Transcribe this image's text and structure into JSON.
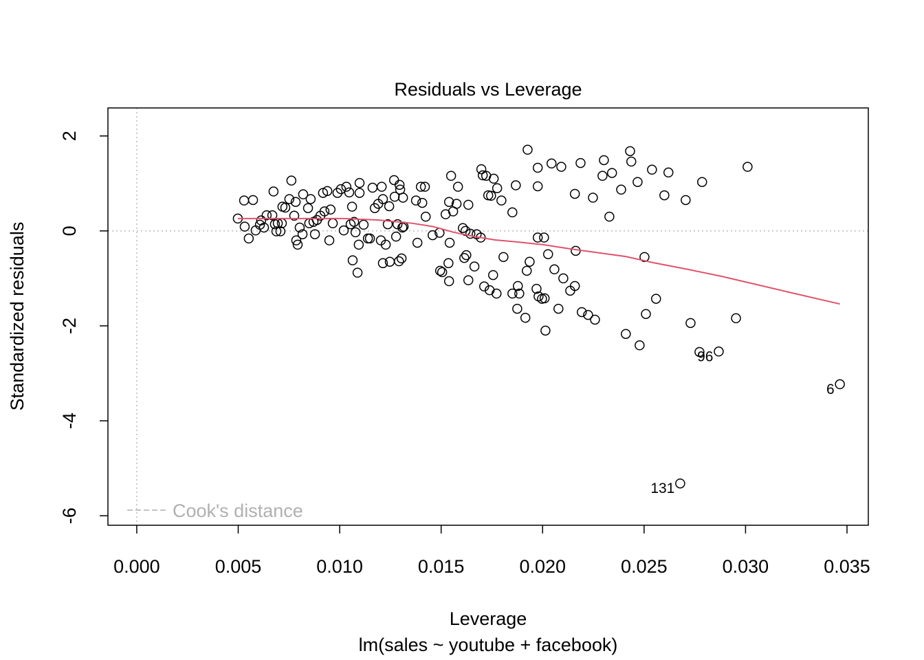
{
  "chart_data": {
    "type": "scatter",
    "title": "Residuals vs Leverage",
    "x_label": "Leverage",
    "subtitle": "lm(sales ~ youtube + facebook)",
    "y_label": "Standardized residuals",
    "xlim": [
      -0.00142,
      0.03605
    ],
    "ylim": [
      -6.2,
      2.59
    ],
    "xticks": [
      {
        "value": 0,
        "label": "0.000"
      },
      {
        "value": 0.005,
        "label": "0.005"
      },
      {
        "value": 0.01,
        "label": "0.010"
      },
      {
        "value": 0.015,
        "label": "0.015"
      },
      {
        "value": 0.02,
        "label": "0.020"
      },
      {
        "value": 0.025,
        "label": "0.025"
      },
      {
        "value": 0.03,
        "label": "0.030"
      },
      {
        "value": 0.035,
        "label": "0.035"
      }
    ],
    "yticks": [
      -6,
      -4,
      -2,
      0,
      2
    ],
    "reference_lines": {
      "x": 0,
      "y": 0
    },
    "legend": {
      "label": "Cook's distance",
      "position": "bottomleft",
      "color": "#b0b0b0"
    },
    "color": "#000000",
    "x": [
      0.02868,
      0.03465,
      0.02678,
      0.00498,
      0.00529,
      0.00573,
      0.00532,
      0.00552,
      0.00586,
      0.00607,
      0.00613,
      0.00627,
      0.0064,
      0.00668,
      0.00674,
      0.00681,
      0.00688,
      0.00695,
      0.00708,
      0.00715,
      0.00718,
      0.00732,
      0.00752,
      0.00762,
      0.00776,
      0.00783,
      0.00786,
      0.00793,
      0.00803,
      0.00817,
      0.0082,
      0.00844,
      0.0085,
      0.00857,
      0.00871,
      0.00878,
      0.00888,
      0.00905,
      0.00918,
      0.00925,
      0.00939,
      0.00949,
      0.00955,
      0.00966,
      0.00989,
      0.01006,
      0.0102,
      0.01033,
      0.01047,
      0.01054,
      0.01061,
      0.01064,
      0.01071,
      0.01078,
      0.01088,
      0.01094,
      0.01098,
      0.01098,
      0.01118,
      0.01139,
      0.01149,
      0.01162,
      0.01173,
      0.0119,
      0.01203,
      0.01207,
      0.01213,
      0.01213,
      0.01227,
      0.01237,
      0.01244,
      0.01247,
      0.01268,
      0.01271,
      0.01278,
      0.01285,
      0.01292,
      0.01295,
      0.01298,
      0.01305,
      0.01309,
      0.01312,
      0.01315,
      0.01376,
      0.01383,
      0.014,
      0.01407,
      0.0142,
      0.01424,
      0.01458,
      0.01492,
      0.01495,
      0.01505,
      0.01522,
      0.01536,
      0.01539,
      0.01539,
      0.01542,
      0.01549,
      0.01559,
      0.01576,
      0.01583,
      0.01607,
      0.01614,
      0.0162,
      0.01624,
      0.01634,
      0.01634,
      0.01644,
      0.01664,
      0.01675,
      0.01695,
      0.01698,
      0.01705,
      0.01712,
      0.01722,
      0.01732,
      0.01739,
      0.01746,
      0.01756,
      0.01759,
      0.01773,
      0.01776,
      0.01797,
      0.01807,
      0.01851,
      0.01851,
      0.01868,
      0.01875,
      0.01878,
      0.01885,
      0.01915,
      0.01922,
      0.01926,
      0.01936,
      0.0197,
      0.01976,
      0.01976,
      0.01976,
      0.0198,
      0.01997,
      0.02007,
      0.0201,
      0.02014,
      0.02027,
      0.02044,
      0.02058,
      0.02078,
      0.02092,
      0.02102,
      0.02136,
      0.02159,
      0.02159,
      0.02163,
      0.02187,
      0.02193,
      0.02224,
      0.02258,
      0.02248,
      0.02295,
      0.02302,
      0.02329,
      0.02342,
      0.02387,
      0.0241,
      0.02431,
      0.02437,
      0.02468,
      0.02478,
      0.02502,
      0.02509,
      0.02539,
      0.02559,
      0.026,
      0.0262,
      0.02705,
      0.02729,
      0.02786,
      0.02773,
      0.02953,
      0.0301
    ],
    "values": [
      -2.54,
      -3.23,
      -5.32,
      0.26,
      0.64,
      0.65,
      0.09,
      -0.16,
      0.01,
      0.13,
      0.22,
      0.07,
      0.33,
      0.33,
      0.83,
      0.14,
      -0.01,
      0.16,
      -0.01,
      0.16,
      0.51,
      0.49,
      0.67,
      1.06,
      0.32,
      0.61,
      -0.2,
      -0.29,
      0.07,
      -0.07,
      0.77,
      0.48,
      0.16,
      0.67,
      0.19,
      -0.07,
      0.23,
      0.32,
      0.8,
      0.41,
      0.84,
      -0.2,
      0.45,
      0.16,
      0.8,
      0.88,
      0.01,
      0.93,
      0.81,
      0.14,
      0.51,
      -0.62,
      0.19,
      -0.03,
      -0.88,
      -0.29,
      1.01,
      0.8,
      0.13,
      -0.16,
      -0.16,
      0.91,
      0.48,
      0.57,
      -0.2,
      0.93,
      -0.68,
      0.67,
      -0.29,
      0.14,
      0.52,
      -0.65,
      1.07,
      0.72,
      -0.12,
      0.14,
      -0.64,
      0.97,
      0.87,
      -0.58,
      0.07,
      0.7,
      0.09,
      0.64,
      -0.25,
      0.93,
      0.59,
      0.93,
      0.3,
      -0.09,
      -0.04,
      -0.84,
      -0.87,
      0.35,
      -0.68,
      0.61,
      -1.06,
      -0.25,
      1.16,
      0.41,
      0.57,
      0.93,
      0.06,
      -0.57,
      0,
      -0.51,
      0.55,
      -1.04,
      -0.06,
      -0.75,
      -0.07,
      -0.14,
      1.3,
      1.17,
      -1.17,
      1.16,
      0.75,
      -1.25,
      0.74,
      -0.93,
      1.1,
      -1.32,
      0.9,
      0.64,
      -0.55,
      -1.32,
      0.39,
      0.96,
      -1.64,
      -1.16,
      -1.32,
      -1.83,
      -0.84,
      1.71,
      -0.65,
      -1.22,
      1.33,
      -0.14,
      0.94,
      -1.38,
      -1.43,
      -0.14,
      -1.42,
      -2.1,
      -0.49,
      1.42,
      -0.81,
      -1.64,
      1.35,
      -1.0,
      -1.26,
      -1.16,
      0.78,
      -0.42,
      1.43,
      -1.71,
      -1.77,
      -1.87,
      0.7,
      1.16,
      1.49,
      0.3,
      1.22,
      0.87,
      -2.17,
      1.68,
      1.46,
      1.03,
      -2.41,
      -0.55,
      -1.75,
      1.29,
      -1.43,
      0.75,
      1.23,
      0.65,
      -1.94,
      1.03,
      -2.55,
      -1.84,
      1.35
    ],
    "point_labels": [
      "96",
      "6",
      "131",
      null,
      null,
      null,
      null,
      null,
      null,
      null,
      null,
      null,
      null,
      null,
      null,
      null,
      null,
      null,
      null,
      null,
      null,
      null,
      null,
      null,
      null,
      null,
      null,
      null,
      null,
      null,
      null,
      null,
      null,
      null,
      null,
      null,
      null,
      null,
      null,
      null,
      null,
      null,
      null,
      null,
      null,
      null,
      null,
      null,
      null,
      null,
      null,
      null,
      null,
      null,
      null,
      null,
      null,
      null,
      null,
      null,
      null,
      null,
      null,
      null,
      null,
      null,
      null,
      null,
      null,
      null,
      null,
      null,
      null,
      null,
      null,
      null,
      null,
      null,
      null,
      null,
      null,
      null,
      null,
      null,
      null,
      null,
      null,
      null,
      null,
      null,
      null,
      null,
      null,
      null,
      null,
      null,
      null,
      null,
      null,
      null,
      null,
      null,
      null,
      null,
      null,
      null,
      null,
      null,
      null,
      null,
      null,
      null,
      null,
      null,
      null,
      null,
      null,
      null,
      null,
      null,
      null,
      null,
      null,
      null,
      null,
      null,
      null,
      null,
      null,
      null,
      null,
      null,
      null,
      null,
      null,
      null,
      null,
      null,
      null,
      null,
      null,
      null,
      null,
      null,
      null,
      null,
      null,
      null,
      null,
      null,
      null,
      null,
      null,
      null,
      null,
      null,
      null,
      null,
      null,
      null,
      null,
      null,
      null,
      null,
      null,
      null,
      null,
      null,
      null,
      null,
      null,
      null,
      null,
      null,
      null,
      null,
      null,
      null,
      null,
      null,
      null
    ],
    "smooth": {
      "color": "#df536b",
      "x": [
        0.00498,
        0.00681,
        0.0085,
        0.0102,
        0.0119,
        0.01359,
        0.01461,
        0.01563,
        0.01664,
        0.01766,
        0.01868,
        0.02003,
        0.02139,
        0.02275,
        0.0241,
        0.02546,
        0.02715,
        0.02885,
        0.03054,
        0.03223,
        0.03465
      ],
      "values": [
        0.26,
        0.26,
        0.26,
        0.26,
        0.23,
        0.16,
        0.09,
        -0.03,
        -0.12,
        -0.19,
        -0.23,
        -0.29,
        -0.38,
        -0.46,
        -0.54,
        -0.67,
        -0.81,
        -0.96,
        -1.13,
        -1.3,
        -1.54
      ]
    }
  }
}
